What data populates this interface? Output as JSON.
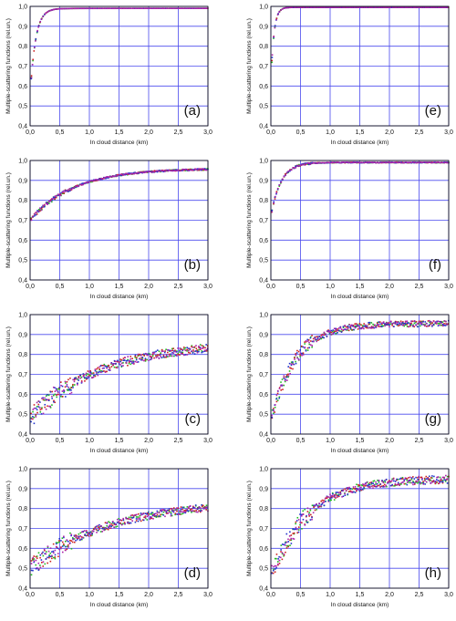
{
  "chart_data": [
    {
      "id": "a",
      "type": "scatter",
      "label": "(a)",
      "xlabel": "In cloud distance (km)",
      "ylabel": "Multiple-scattering functions (rel.un.)",
      "xlim": [
        0,
        3
      ],
      "ylim": [
        0.4,
        1.0
      ],
      "grid": true,
      "xticks": [
        "0,0",
        "0,5",
        "1,0",
        "1,5",
        "2,0",
        "2,5",
        "3,0"
      ],
      "yticks": [
        "0,4",
        "0,5",
        "0,6",
        "0,7",
        "0,8",
        "0,9",
        "1,0"
      ],
      "curve": {
        "y0": 0.54,
        "asymptote": 0.99,
        "amp": 0.44,
        "rate": 11.0,
        "slope": 0.008,
        "noise": 0.0
      },
      "series_colors": [
        "#22bb22",
        "#cc2222",
        "#2233cc",
        "#aa22aa"
      ]
    },
    {
      "id": "b",
      "type": "scatter",
      "label": "(b)",
      "xlabel": "In cloud distance (km)",
      "ylabel": "Multiple-scattering functions (rel.un.)",
      "xlim": [
        0,
        3
      ],
      "ylim": [
        0.4,
        1.0
      ],
      "grid": true,
      "xticks": [
        "0,0",
        "0,5",
        "1,0",
        "1,5",
        "2,0",
        "2,5",
        "3,0"
      ],
      "yticks": [
        "0,4",
        "0,5",
        "0,6",
        "0,7",
        "0,8",
        "0,9",
        "1,0"
      ],
      "curve": {
        "y0": 0.7,
        "asymptote": 0.96,
        "amp": 0.26,
        "rate": 1.35,
        "slope": 0.0,
        "noise": 0.004
      },
      "series_colors": [
        "#22bb22",
        "#cc2222",
        "#2233cc",
        "#aa22aa"
      ]
    },
    {
      "id": "c",
      "type": "scatter",
      "label": "(c)",
      "xlabel": "In cloud distance (km)",
      "ylabel": "Multiple-scattering functions (rel.un.)",
      "xlim": [
        0,
        3
      ],
      "ylim": [
        0.4,
        1.0
      ],
      "grid": true,
      "xticks": [
        "0,0",
        "0,5",
        "1,0",
        "1,5",
        "2,0",
        "2,5",
        "3,0"
      ],
      "yticks": [
        "0,4",
        "0,5",
        "0,6",
        "0,7",
        "0,8",
        "0,9",
        "1,0"
      ],
      "curve": {
        "y0": 0.47,
        "asymptote": 0.86,
        "amp": 0.38,
        "rate": 0.85,
        "slope": 0.0,
        "noise": 0.022
      },
      "series_colors": [
        "#22bb22",
        "#cc2222",
        "#2233cc",
        "#aa22aa"
      ]
    },
    {
      "id": "d",
      "type": "scatter",
      "label": "(d)",
      "xlabel": "In cloud distance (km)",
      "ylabel": "Multiple-scattering functions (rel.un.)",
      "xlim": [
        0,
        3
      ],
      "ylim": [
        0.4,
        1.0
      ],
      "grid": true,
      "xticks": [
        "0,0",
        "0,5",
        "1,0",
        "1,5",
        "2,0",
        "2,5",
        "3,0"
      ],
      "yticks": [
        "0,4",
        "0,5",
        "0,6",
        "0,7",
        "0,8",
        "0,9",
        "1,0"
      ],
      "curve": {
        "y0": 0.46,
        "asymptote": 0.84,
        "amp": 0.34,
        "rate": 0.75,
        "slope": 0.0,
        "noise": 0.02
      },
      "series_colors": [
        "#22bb22",
        "#cc2222",
        "#2233cc",
        "#aa22aa"
      ]
    },
    {
      "id": "e",
      "type": "scatter",
      "label": "(e)",
      "xlabel": "In cloud distance (km)",
      "ylabel": "Multiple-scattering functions (rel.un.)",
      "xlim": [
        0,
        3
      ],
      "ylim": [
        0.4,
        1.0
      ],
      "grid": true,
      "xticks": [
        "0,0",
        "0,5",
        "1,0",
        "1,5",
        "2,0",
        "2,5",
        "3,0"
      ],
      "yticks": [
        "0,4",
        "0,5",
        "0,6",
        "0,7",
        "0,8",
        "0,9",
        "1,0"
      ],
      "curve": {
        "y0": 0.6,
        "asymptote": 0.995,
        "amp": 0.39,
        "rate": 20.0,
        "slope": 0.0,
        "noise": 0.0
      },
      "series_colors": [
        "#22bb22",
        "#cc2222",
        "#2233cc",
        "#aa22aa"
      ]
    },
    {
      "id": "f",
      "type": "scatter",
      "label": "(f)",
      "xlabel": "In cloud distance (km)",
      "ylabel": "Multiple-scattering functions (rel.un.)",
      "xlim": [
        0,
        3
      ],
      "ylim": [
        0.4,
        1.0
      ],
      "grid": true,
      "xticks": [
        "0,0",
        "0,5",
        "1,0",
        "1,5",
        "2,0",
        "2,5",
        "3,0"
      ],
      "yticks": [
        "0,4",
        "0,5",
        "0,6",
        "0,7",
        "0,8",
        "0,9",
        "1,0"
      ],
      "curve": {
        "y0": 0.72,
        "asymptote": 0.99,
        "amp": 0.27,
        "rate": 6.0,
        "slope": 0.0,
        "noise": 0.002
      },
      "series_colors": [
        "#22bb22",
        "#cc2222",
        "#2233cc",
        "#aa22aa"
      ]
    },
    {
      "id": "g",
      "type": "scatter",
      "label": "(g)",
      "xlabel": "In cloud distance (km)",
      "ylabel": "Multiple-scattering functions (rel.un.)",
      "xlim": [
        0,
        3
      ],
      "ylim": [
        0.4,
        1.0
      ],
      "grid": true,
      "xticks": [
        "0,0",
        "0,5",
        "1,0",
        "1,5",
        "2,0",
        "2,5",
        "3,0"
      ],
      "yticks": [
        "0,4",
        "0,5",
        "0,6",
        "0,7",
        "0,8",
        "0,9",
        "1,0"
      ],
      "curve": {
        "y0": 0.46,
        "asymptote": 0.955,
        "amp": 0.49,
        "rate": 2.4,
        "slope": 0.0,
        "noise": 0.015
      },
      "series_colors": [
        "#22bb22",
        "#cc2222",
        "#2233cc",
        "#aa22aa"
      ]
    },
    {
      "id": "h",
      "type": "scatter",
      "label": "(h)",
      "xlabel": "In cloud distance (km)",
      "ylabel": "Multiple-scattering functions (rel.un.)",
      "xlim": [
        0,
        3
      ],
      "ylim": [
        0.4,
        1.0
      ],
      "grid": true,
      "xticks": [
        "0,0",
        "0,5",
        "1,0",
        "1,5",
        "2,0",
        "2,5",
        "3,0"
      ],
      "yticks": [
        "0,4",
        "0,5",
        "0,6",
        "0,7",
        "0,8",
        "0,9",
        "1,0"
      ],
      "curve": {
        "y0": 0.46,
        "asymptote": 0.95,
        "amp": 0.49,
        "rate": 1.6,
        "slope": 0.0,
        "noise": 0.02
      },
      "series_colors": [
        "#22bb22",
        "#cc2222",
        "#2233cc",
        "#aa22aa"
      ]
    }
  ],
  "colors": {
    "grid": "#4a4aee",
    "axis": "#000000",
    "background": "#ffffff"
  }
}
